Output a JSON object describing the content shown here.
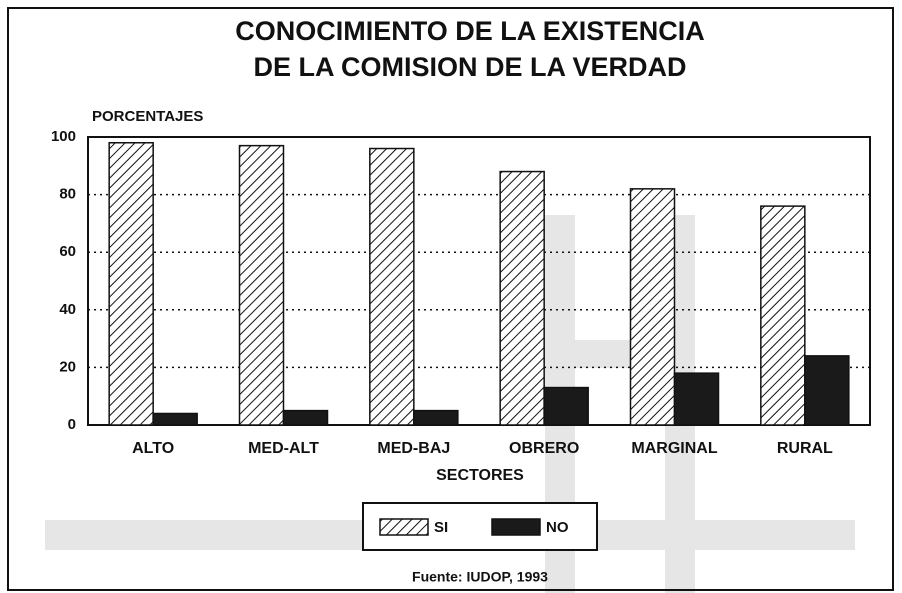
{
  "chart_data": {
    "type": "bar",
    "title": [
      "CONOCIMIENTO DE LA EXISTENCIA",
      "DE LA COMISION DE LA VERDAD"
    ],
    "y_label": "PORCENTAJES",
    "x_label": "SECTORES",
    "source": "Fuente: IUDOP, 1993",
    "categories": [
      "ALTO",
      "MED-ALT",
      "MED-BAJ",
      "OBRERO",
      "MARGINAL",
      "RURAL"
    ],
    "series": [
      {
        "name": "SI",
        "color": "hatched",
        "values": [
          98,
          97,
          96,
          88,
          82,
          76
        ]
      },
      {
        "name": "NO",
        "color": "#1a1a1a",
        "values": [
          4,
          5,
          5,
          13,
          18,
          24
        ]
      }
    ],
    "ylim": [
      0,
      100
    ],
    "yticks": [
      0,
      20,
      40,
      60,
      80,
      100
    ],
    "grid": true
  }
}
